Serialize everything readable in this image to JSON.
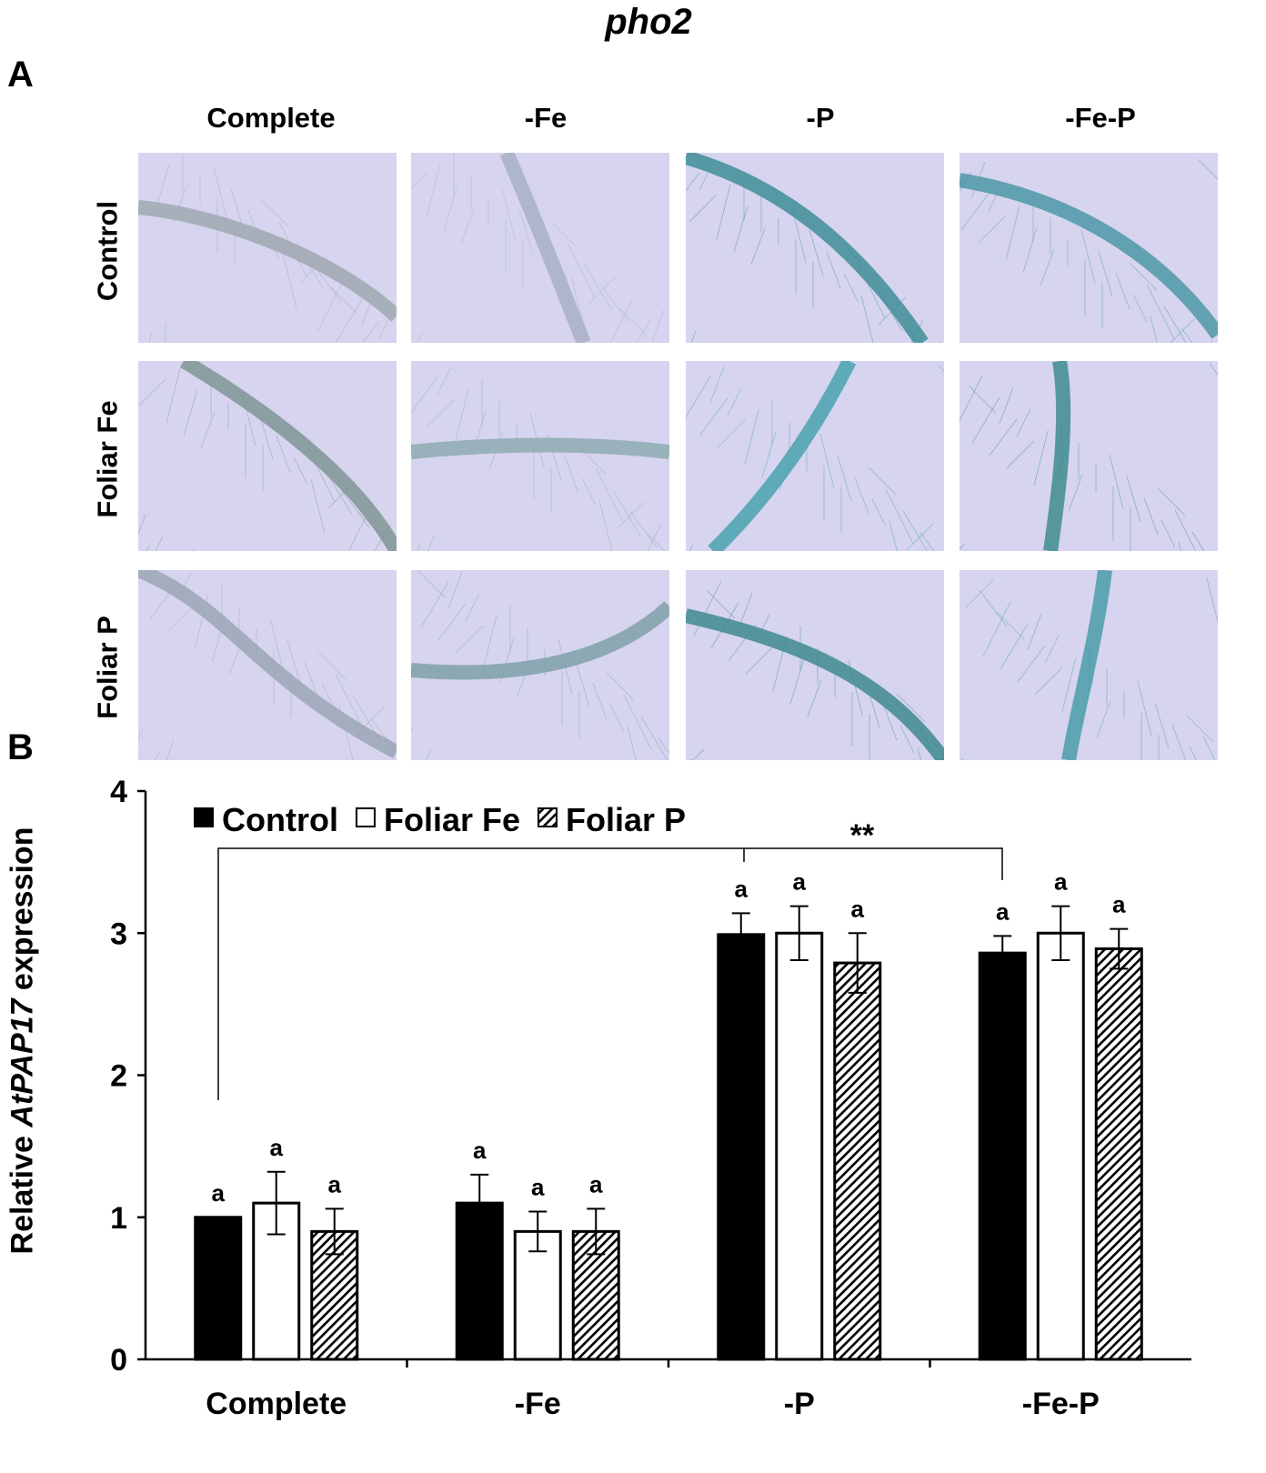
{
  "figure_title": "pho2",
  "panel_a": {
    "label": "A",
    "columns": [
      "Complete",
      "-Fe",
      "-P",
      "-Fe-P"
    ],
    "rows": [
      "Control",
      "Foliar Fe",
      "Foliar P"
    ],
    "background_color": "#d6d4ee",
    "root_colors": [
      [
        "#9fa8b0",
        "#a8b0c4",
        "#3f8e98",
        "#4e98a6"
      ],
      [
        "#7f9594",
        "#8eaab0",
        "#4aa2ae",
        "#3e8c8e"
      ],
      [
        "#9aa6b4",
        "#7fa0a8",
        "#3f8a8e",
        "#4a9ca8"
      ]
    ]
  },
  "panel_b": {
    "label": "B",
    "significance": "**"
  },
  "chart_data": {
    "type": "bar",
    "ylabel_prefix": "Relative ",
    "ylabel_gene": "AtPAP17",
    "ylabel_suffix": " expression",
    "ylim": [
      0,
      4
    ],
    "yticks": [
      "0",
      "1",
      "2",
      "3",
      "4"
    ],
    "categories": [
      "Complete",
      "-Fe",
      "-P",
      "-Fe-P"
    ],
    "legend_position": "top-left",
    "series": [
      {
        "name": "Control",
        "fill": "solid-black",
        "values": [
          1.0,
          1.1,
          2.99,
          2.86
        ],
        "errors": [
          0.0,
          0.2,
          0.15,
          0.12
        ],
        "letters": [
          "a",
          "a",
          "a",
          "a"
        ]
      },
      {
        "name": "Foliar Fe",
        "fill": "white",
        "values": [
          1.1,
          0.9,
          3.0,
          3.0
        ],
        "errors": [
          0.22,
          0.14,
          0.19,
          0.19
        ],
        "letters": [
          "a",
          "a",
          "a",
          "a"
        ]
      },
      {
        "name": "Foliar P",
        "fill": "hatched",
        "values": [
          0.9,
          0.9,
          2.79,
          2.89
        ],
        "errors": [
          0.16,
          0.16,
          0.21,
          0.14
        ],
        "letters": [
          "a",
          "a",
          "a",
          "a"
        ]
      }
    ]
  }
}
